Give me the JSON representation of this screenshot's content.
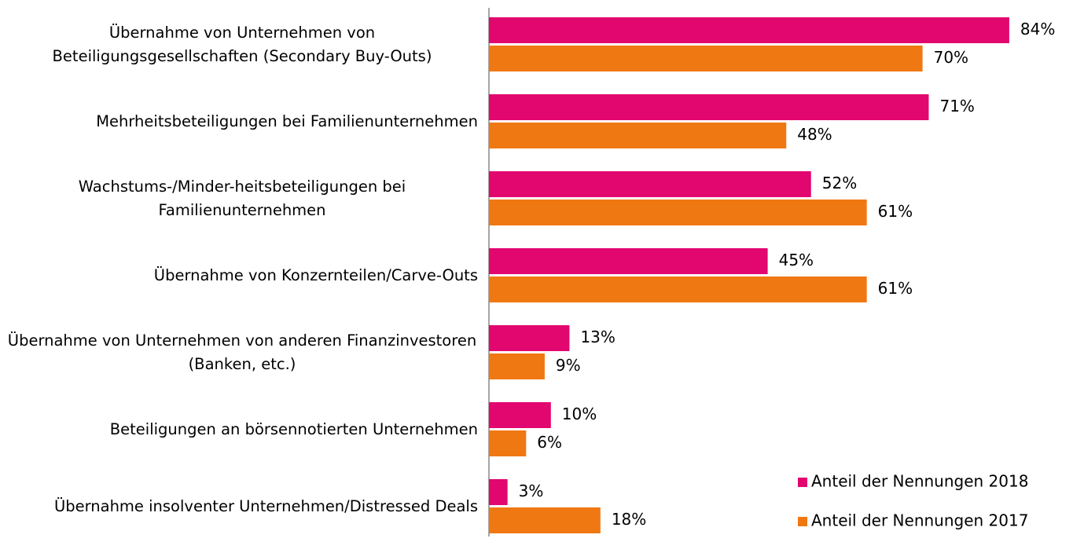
{
  "chart_data": {
    "type": "barh",
    "categories": [
      "Übernahme von Unternehmen von Beteiligungsgesellschaften (Secondary Buy-Outs)",
      "Mehrheitsbeteiligungen bei Familienunternehmen",
      "Wachstums-/Minder-heitsbeteiligungen bei Familienunternehmen",
      "Übernahme von Konzernteilen/Carve-Outs",
      "Übernahme von Unternehmen von anderen Finanzinvestoren (Banken, etc.)",
      "Beteiligungen an börsennotierten Unternehmen",
      "Übernahme insolventer Unternehmen/Distressed Deals"
    ],
    "series": [
      {
        "name": "Anteil der Nennungen 2018",
        "color": "#e2066f",
        "values": [
          84,
          71,
          52,
          45,
          13,
          10,
          3
        ],
        "value_labels": [
          "84%",
          "71%",
          "52%",
          "45%",
          "13%",
          "10%",
          "3%"
        ]
      },
      {
        "name": "Anteil der Nennungen 2017",
        "color": "#f07812",
        "values": [
          70,
          48,
          61,
          61,
          9,
          6,
          18
        ],
        "value_labels": [
          "70%",
          "48%",
          "61%",
          "61%",
          "9%",
          "6%",
          "18%"
        ]
      }
    ],
    "xlim": [
      0,
      100
    ],
    "legend": "lower right"
  }
}
